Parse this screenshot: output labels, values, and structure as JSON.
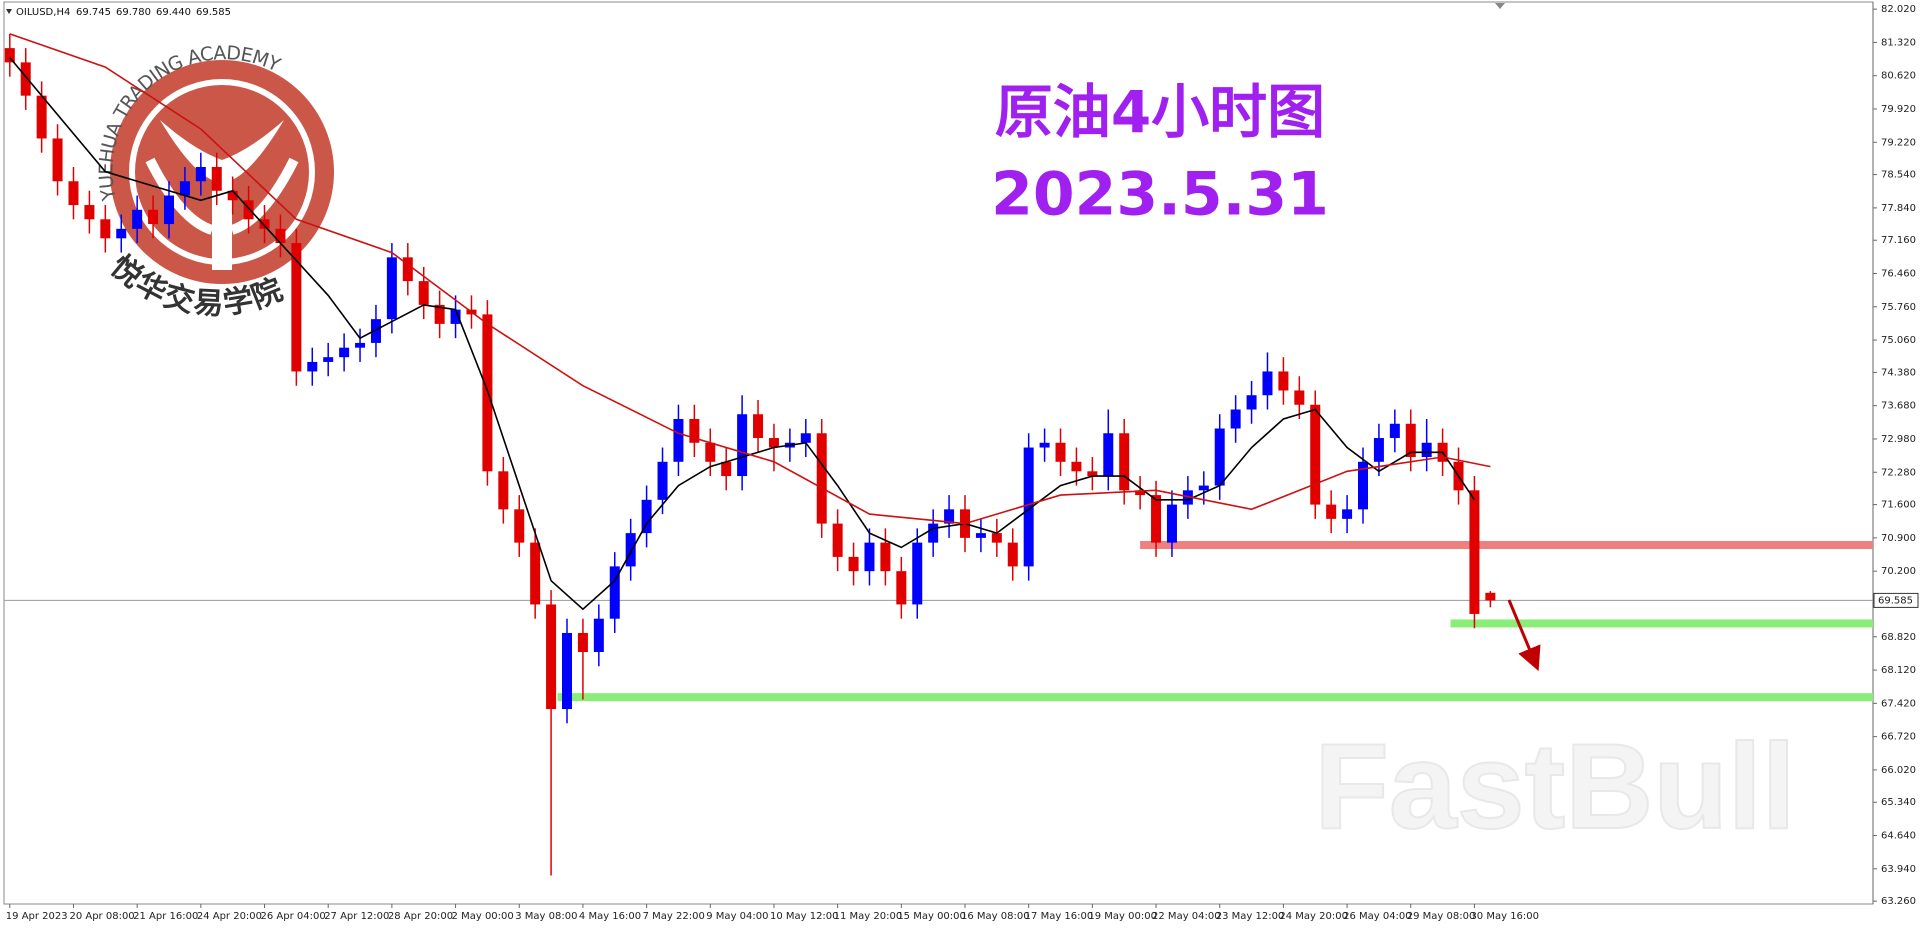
{
  "chart_data": {
    "type": "candlestick",
    "title": "原油4小时图",
    "subtitle": "2023.5.31",
    "symbol": "OILUSD,H4",
    "header_values": [
      "69.745",
      "69.780",
      "69.440",
      "69.585"
    ],
    "watermarks": [
      "YUEHUA TRADING ACADEMY",
      "悦华交易学院",
      "FastBull"
    ],
    "up_color": "#0000ff",
    "down_color": "#e00000",
    "ylim": [
      63.2,
      82.17
    ],
    "yticks": [
      {
        "value": 82.02,
        "label": "82.020"
      },
      {
        "value": 81.32,
        "label": "81.320"
      },
      {
        "value": 80.62,
        "label": "80.620"
      },
      {
        "value": 79.92,
        "label": "79.920"
      },
      {
        "value": 79.22,
        "label": "79.220"
      },
      {
        "value": 78.54,
        "label": "78.540"
      },
      {
        "value": 77.84,
        "label": "77.840"
      },
      {
        "value": 77.16,
        "label": "77.160"
      },
      {
        "value": 76.46,
        "label": "76.460"
      },
      {
        "value": 75.76,
        "label": "75.760"
      },
      {
        "value": 75.06,
        "label": "75.060"
      },
      {
        "value": 74.38,
        "label": "74.380"
      },
      {
        "value": 73.68,
        "label": "73.680"
      },
      {
        "value": 72.98,
        "label": "72.980"
      },
      {
        "value": 72.28,
        "label": "72.280"
      },
      {
        "value": 71.6,
        "label": "71.600"
      },
      {
        "value": 70.9,
        "label": "70.900"
      },
      {
        "value": 70.2,
        "label": "70.200"
      },
      {
        "value": 68.82,
        "label": "68.820"
      },
      {
        "value": 68.12,
        "label": "68.120"
      },
      {
        "value": 67.42,
        "label": "67.420"
      },
      {
        "value": 66.72,
        "label": "66.720"
      },
      {
        "value": 66.02,
        "label": "66.020"
      },
      {
        "value": 65.34,
        "label": "65.340"
      },
      {
        "value": 64.64,
        "label": "64.640"
      },
      {
        "value": 63.94,
        "label": "63.940"
      },
      {
        "value": 63.26,
        "label": "63.260"
      }
    ],
    "categories": [
      "19 Apr 2023",
      null,
      null,
      null,
      "20 Apr 08:00",
      null,
      null,
      null,
      "21 Apr 16:00",
      null,
      null,
      null,
      "24 Apr 20:00",
      null,
      null,
      null,
      "26 Apr 04:00",
      null,
      null,
      null,
      "27 Apr 12:00",
      null,
      null,
      null,
      "28 Apr 20:00",
      null,
      null,
      null,
      "2 May 00:00",
      null,
      null,
      null,
      "3 May 08:00",
      null,
      null,
      null,
      "4 May 16:00",
      null,
      null,
      null,
      "7 May 22:00",
      null,
      null,
      null,
      "9 May 04:00",
      null,
      null,
      null,
      "10 May 12:00",
      null,
      null,
      null,
      "11 May 20:00",
      null,
      null,
      null,
      "15 May 00:00",
      null,
      null,
      null,
      "16 May 08:00",
      null,
      null,
      null,
      "17 May 16:00",
      null,
      null,
      null,
      "19 May 00:00",
      null,
      null,
      null,
      "22 May 04:00",
      null,
      null,
      null,
      "23 May 12:00",
      null,
      null,
      null,
      "24 May 20:00",
      null,
      null,
      null,
      "26 May 04:00",
      null,
      null,
      null,
      "29 May 08:00",
      null,
      null,
      null,
      "30 May 16:00",
      null
    ],
    "open": [
      81.2,
      80.9,
      80.2,
      79.3,
      78.4,
      77.9,
      77.6,
      77.2,
      77.4,
      77.8,
      77.5,
      78.1,
      78.4,
      78.7,
      78.2,
      78.0,
      77.6,
      77.4,
      77.1,
      74.4,
      74.6,
      74.7,
      74.9,
      75.0,
      75.5,
      76.8,
      76.3,
      75.8,
      75.4,
      75.7,
      75.6,
      72.3,
      71.5,
      70.8,
      69.5,
      67.3,
      68.9,
      68.5,
      69.2,
      70.3,
      71.0,
      71.7,
      72.5,
      73.4,
      72.9,
      72.5,
      72.2,
      73.5,
      73.0,
      72.8,
      72.9,
      73.1,
      71.2,
      70.5,
      70.2,
      70.8,
      70.2,
      69.5,
      70.8,
      71.2,
      71.5,
      70.9,
      71.0,
      70.8,
      70.3,
      72.8,
      72.9,
      72.5,
      72.3,
      72.2,
      73.1,
      71.9,
      71.8,
      70.8,
      71.6,
      71.9,
      72.0,
      73.2,
      73.6,
      73.9,
      74.4,
      74.0,
      73.7,
      71.6,
      71.3,
      71.5,
      72.5,
      73.0,
      73.3,
      72.6,
      72.9,
      72.5,
      71.9,
      69.745
    ],
    "high": [
      81.5,
      81.2,
      80.5,
      79.6,
      78.7,
      78.2,
      77.9,
      77.7,
      78.1,
      78.1,
      78.4,
      78.7,
      79.0,
      79.0,
      78.5,
      78.3,
      77.9,
      77.7,
      77.4,
      74.9,
      75.0,
      75.2,
      75.3,
      75.8,
      77.1,
      77.1,
      76.6,
      76.1,
      76.0,
      76.0,
      75.9,
      72.6,
      71.8,
      71.1,
      69.8,
      69.2,
      69.2,
      69.5,
      70.6,
      71.3,
      72.0,
      72.8,
      73.7,
      73.7,
      73.2,
      72.8,
      73.9,
      73.8,
      73.3,
      73.2,
      73.4,
      73.4,
      71.5,
      70.8,
      71.1,
      71.1,
      70.5,
      71.1,
      71.5,
      71.8,
      71.8,
      71.3,
      71.3,
      71.1,
      73.1,
      73.2,
      73.2,
      72.8,
      72.6,
      73.6,
      73.4,
      72.2,
      72.1,
      71.9,
      72.2,
      72.3,
      73.5,
      73.9,
      74.2,
      74.8,
      74.7,
      74.3,
      74.0,
      71.9,
      71.8,
      72.8,
      73.3,
      73.6,
      73.6,
      73.4,
      73.2,
      72.8,
      72.2,
      69.78
    ],
    "low": [
      80.6,
      79.9,
      79.0,
      78.1,
      77.6,
      77.3,
      76.9,
      76.9,
      77.1,
      77.2,
      77.2,
      77.8,
      78.1,
      77.9,
      77.7,
      77.3,
      77.1,
      76.8,
      74.1,
      74.1,
      74.3,
      74.4,
      74.6,
      74.7,
      75.2,
      76.0,
      75.5,
      75.1,
      75.1,
      75.3,
      72.0,
      71.2,
      70.5,
      69.2,
      63.8,
      67.0,
      67.5,
      68.2,
      68.9,
      70.0,
      70.7,
      71.4,
      72.2,
      72.6,
      72.2,
      71.9,
      71.9,
      72.7,
      72.3,
      72.5,
      72.6,
      70.9,
      70.2,
      69.9,
      69.9,
      69.9,
      69.2,
      69.2,
      70.5,
      70.9,
      70.6,
      70.6,
      70.5,
      70.0,
      70.0,
      72.5,
      72.2,
      72.0,
      71.9,
      71.9,
      71.6,
      71.5,
      70.5,
      70.5,
      71.3,
      71.6,
      71.7,
      72.9,
      73.3,
      73.6,
      73.7,
      73.4,
      71.3,
      71.0,
      71.0,
      71.2,
      72.2,
      72.7,
      72.3,
      72.3,
      72.2,
      71.6,
      69.0,
      69.44
    ],
    "close": [
      80.9,
      80.2,
      79.3,
      78.4,
      77.9,
      77.6,
      77.2,
      77.4,
      77.8,
      77.5,
      78.1,
      78.4,
      78.7,
      78.2,
      78.0,
      77.6,
      77.4,
      77.1,
      74.4,
      74.6,
      74.7,
      74.9,
      75.0,
      75.5,
      76.8,
      76.3,
      75.8,
      75.4,
      75.7,
      75.6,
      72.3,
      71.5,
      70.8,
      69.5,
      67.3,
      68.9,
      68.5,
      69.2,
      70.3,
      71.0,
      71.7,
      72.5,
      73.4,
      72.9,
      72.5,
      72.2,
      73.5,
      73.0,
      72.8,
      72.9,
      73.1,
      71.2,
      70.5,
      70.2,
      70.8,
      70.2,
      69.5,
      70.8,
      71.2,
      71.5,
      70.9,
      71.0,
      70.8,
      70.3,
      72.8,
      72.9,
      72.5,
      72.3,
      72.2,
      73.1,
      71.9,
      71.8,
      70.8,
      71.6,
      71.9,
      72.0,
      73.2,
      73.6,
      73.9,
      74.4,
      74.0,
      73.7,
      71.6,
      71.3,
      71.5,
      72.5,
      73.0,
      73.3,
      72.6,
      72.9,
      72.5,
      71.9,
      69.3,
      69.585
    ],
    "series": [
      {
        "color": "#000000",
        "x": [
          0,
          6,
          12,
          14,
          20,
          22,
          26,
          28,
          30,
          32,
          34,
          36,
          38,
          40,
          42,
          44,
          48,
          50,
          52,
          54,
          56,
          58,
          60,
          62,
          64,
          66,
          68,
          70,
          72,
          74,
          76,
          78,
          80,
          82,
          84,
          86,
          88,
          90,
          92
        ],
        "values": [
          81.0,
          78.6,
          78.0,
          78.2,
          76.0,
          75.1,
          75.8,
          75.7,
          74.0,
          72.0,
          70.0,
          69.4,
          70.0,
          71.2,
          72.0,
          72.4,
          72.8,
          72.9,
          72.0,
          71.0,
          70.7,
          71.1,
          71.2,
          71.0,
          71.5,
          72.0,
          72.2,
          72.2,
          71.7,
          71.7,
          72.0,
          72.8,
          73.4,
          73.6,
          72.8,
          72.3,
          72.7,
          72.7,
          71.7
        ]
      },
      {
        "color": "#cc1111",
        "x": [
          0,
          6,
          12,
          18,
          24,
          30,
          36,
          42,
          48,
          54,
          60,
          66,
          72,
          78,
          84,
          90,
          93
        ],
        "values": [
          81.5,
          80.8,
          79.5,
          77.6,
          76.9,
          75.4,
          74.1,
          73.1,
          72.5,
          71.4,
          71.2,
          71.8,
          71.9,
          71.5,
          72.3,
          72.6,
          72.4
        ]
      }
    ],
    "levels": [
      {
        "value": 70.75,
        "from": 71,
        "color": "#ee8080"
      },
      {
        "value": 69.1,
        "from": 90.5,
        "color": "#88ee77"
      },
      {
        "value": 67.55,
        "from": 34.4,
        "color": "#88ee77"
      }
    ]
  }
}
